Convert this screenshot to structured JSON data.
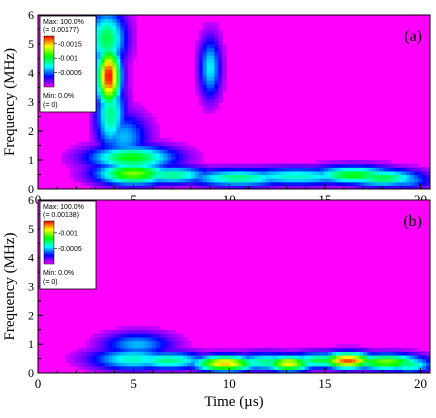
{
  "colors": {
    "background": "#ff00ff",
    "colormap": [
      "#ff00ff",
      "#0000ff",
      "#00ffff",
      "#00ff00",
      "#ffff00",
      "#ff0000"
    ]
  },
  "chart_data": [
    {
      "type": "heatmap",
      "panel_label": "(a)",
      "xlabel": "",
      "ylabel": "Frequency (MHz)",
      "xlim": [
        0,
        20.5
      ],
      "ylim": [
        0,
        6
      ],
      "xticks": [
        "0",
        "5",
        "10",
        "15",
        "20"
      ],
      "yticks": [
        "0",
        "1",
        "2",
        "3",
        "4",
        "5",
        "6"
      ],
      "legend": {
        "max_label": "Max: 100.0%",
        "max_value": "(= 0.00177)",
        "ticks": [
          "0.0015",
          "0.001",
          "0.0005"
        ],
        "tick_values": [
          0.0015,
          0.001,
          0.0005
        ],
        "min_label": "Min: 0.0%",
        "min_value": "(= 0)",
        "max": 0.00177
      },
      "features": [
        {
          "t": 3.7,
          "f": 3.9,
          "dt": 0.45,
          "df": 0.75,
          "level": 1.0
        },
        {
          "t": 3.6,
          "f": 5.2,
          "dt": 0.7,
          "df": 0.7,
          "level": 0.55
        },
        {
          "t": 3.8,
          "f": 2.6,
          "dt": 0.55,
          "df": 0.9,
          "level": 0.5
        },
        {
          "t": 4.5,
          "f": 1.8,
          "dt": 0.9,
          "df": 0.6,
          "level": 0.35
        },
        {
          "t": 4.9,
          "f": 1.1,
          "dt": 1.6,
          "df": 0.3,
          "level": 0.6
        },
        {
          "t": 5.0,
          "f": 0.55,
          "dt": 1.4,
          "df": 0.28,
          "level": 0.7
        },
        {
          "t": 7.0,
          "f": 0.5,
          "dt": 1.5,
          "df": 0.22,
          "level": 0.5
        },
        {
          "t": 9.0,
          "f": 4.2,
          "dt": 0.4,
          "df": 0.75,
          "level": 0.4
        },
        {
          "t": 10.5,
          "f": 0.4,
          "dt": 2.0,
          "df": 0.22,
          "level": 0.5
        },
        {
          "t": 13.5,
          "f": 0.45,
          "dt": 2.5,
          "df": 0.22,
          "level": 0.45
        },
        {
          "t": 16.5,
          "f": 0.5,
          "dt": 1.6,
          "df": 0.22,
          "level": 0.6
        },
        {
          "t": 18.0,
          "f": 0.4,
          "dt": 1.5,
          "df": 0.22,
          "level": 0.55
        },
        {
          "t": 16.0,
          "f": 0.65,
          "dt": 1.5,
          "df": 0.15,
          "level": 0.35
        },
        {
          "t": 19.2,
          "f": 0.3,
          "dt": 1.0,
          "df": 0.2,
          "level": 0.35
        }
      ]
    },
    {
      "type": "heatmap",
      "panel_label": "(b)",
      "xlabel": "Time (µs)",
      "ylabel": "Frequency (MHz)",
      "xlim": [
        0,
        20.5
      ],
      "ylim": [
        0,
        6
      ],
      "xticks": [
        "0",
        "5",
        "10",
        "15",
        "20"
      ],
      "yticks": [
        "0",
        "1",
        "2",
        "3",
        "4",
        "5",
        "6"
      ],
      "legend": {
        "max_label": "Max: 100.0%",
        "max_value": "(= 0.00138)",
        "ticks": [
          "0.001",
          "0.0005"
        ],
        "tick_values": [
          0.001,
          0.0005
        ],
        "min_label": "Min: 0.0%",
        "min_value": "(= 0)",
        "max": 0.00138
      },
      "features": [
        {
          "t": 5.2,
          "f": 1.0,
          "dt": 1.3,
          "df": 0.3,
          "level": 0.35
        },
        {
          "t": 5.0,
          "f": 0.5,
          "dt": 1.6,
          "df": 0.28,
          "level": 0.45
        },
        {
          "t": 6.8,
          "f": 0.45,
          "dt": 1.5,
          "df": 0.22,
          "level": 0.5
        },
        {
          "t": 9.8,
          "f": 0.35,
          "dt": 1.2,
          "df": 0.2,
          "level": 0.85
        },
        {
          "t": 12.0,
          "f": 0.4,
          "dt": 1.5,
          "df": 0.22,
          "level": 0.5
        },
        {
          "t": 13.1,
          "f": 0.35,
          "dt": 0.9,
          "df": 0.2,
          "level": 0.8
        },
        {
          "t": 14.8,
          "f": 0.45,
          "dt": 1.4,
          "df": 0.2,
          "level": 0.55
        },
        {
          "t": 16.2,
          "f": 0.45,
          "dt": 1.0,
          "df": 0.2,
          "level": 0.95
        },
        {
          "t": 18.2,
          "f": 0.4,
          "dt": 1.4,
          "df": 0.2,
          "level": 0.7
        },
        {
          "t": 19.4,
          "f": 0.3,
          "dt": 0.9,
          "df": 0.2,
          "level": 0.5
        }
      ]
    }
  ]
}
